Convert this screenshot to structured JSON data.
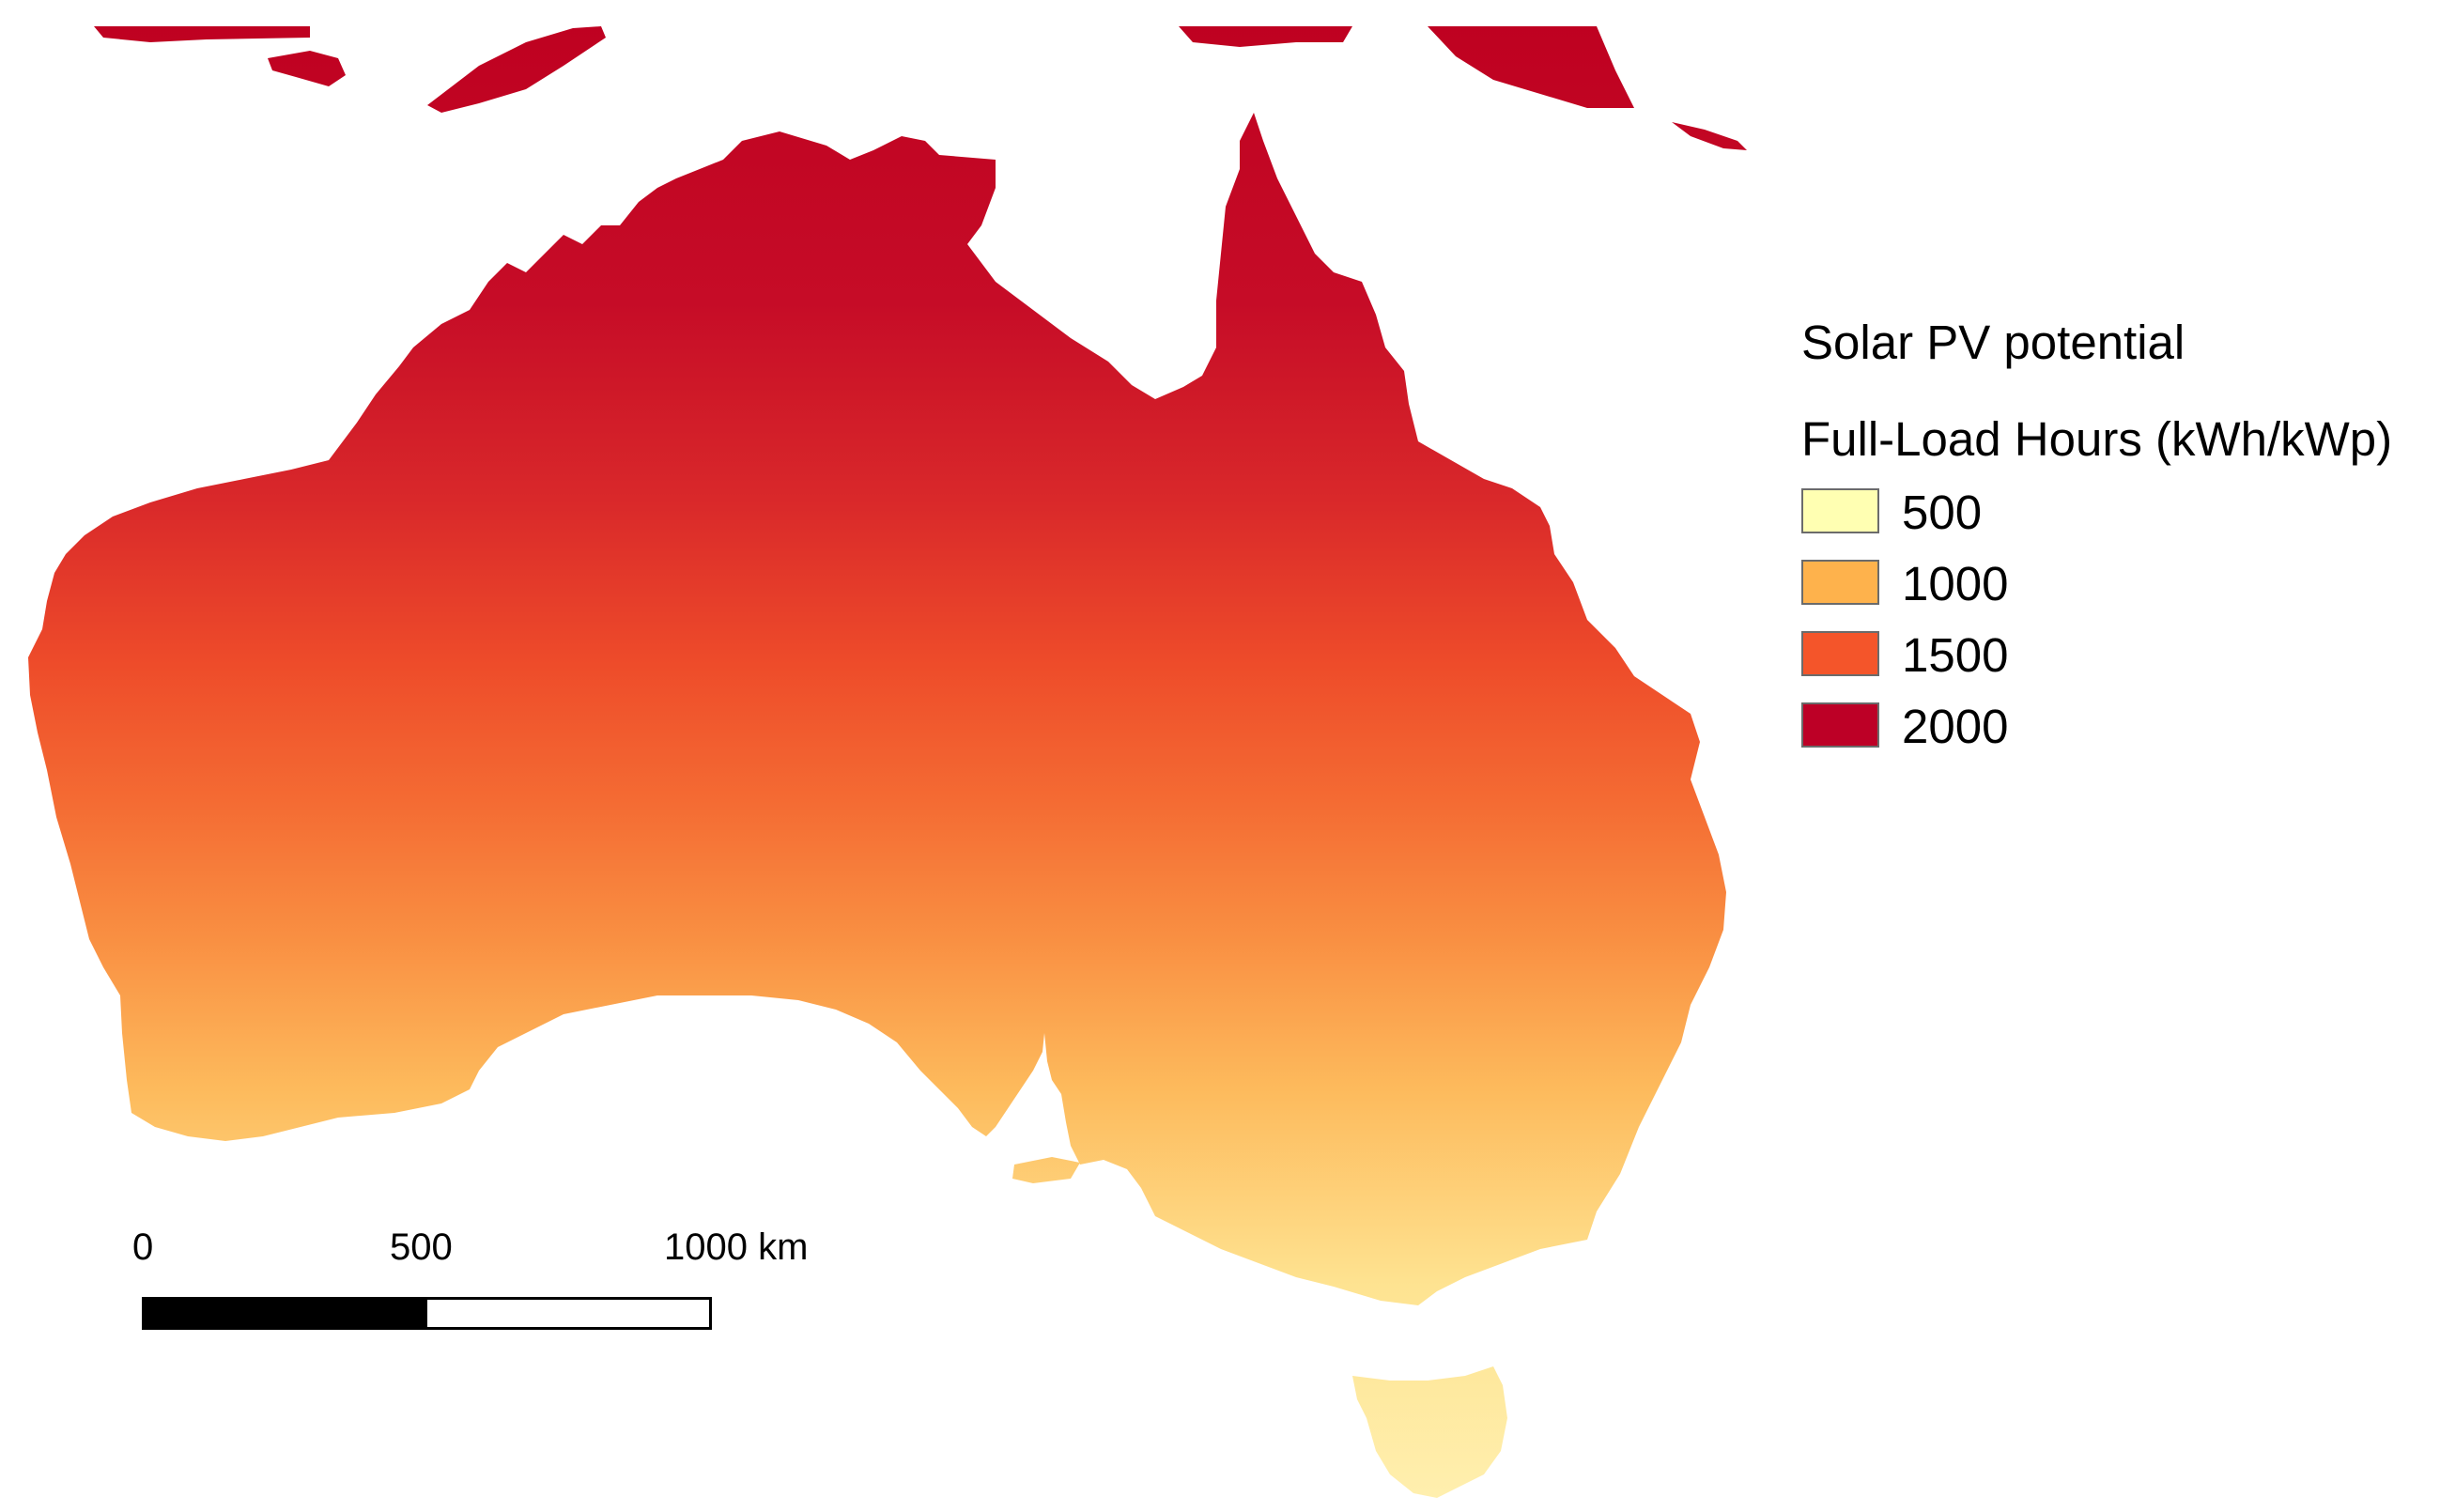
{
  "map": {
    "colors": {
      "ramp": [
        "#ffffb2",
        "#fecc5c",
        "#fd8d3c",
        "#f03b20",
        "#bd0026"
      ],
      "land_north": "#be0a2a",
      "land_south": "#fed576"
    }
  },
  "legend": {
    "title": "Solar PV potential",
    "subtitle": "Full-Load Hours (kWh/kWp)",
    "items": [
      {
        "label": "500",
        "color": "#ffffb2"
      },
      {
        "label": "1000",
        "color": "#feb24c"
      },
      {
        "label": "1500",
        "color": "#f4552a"
      },
      {
        "label": "2000",
        "color": "#bd0026"
      }
    ]
  },
  "scale_bar": {
    "labels": [
      "0",
      "500",
      "1000 km"
    ],
    "segments": [
      {
        "color": "#000000"
      },
      {
        "color": "#ffffff"
      }
    ]
  }
}
